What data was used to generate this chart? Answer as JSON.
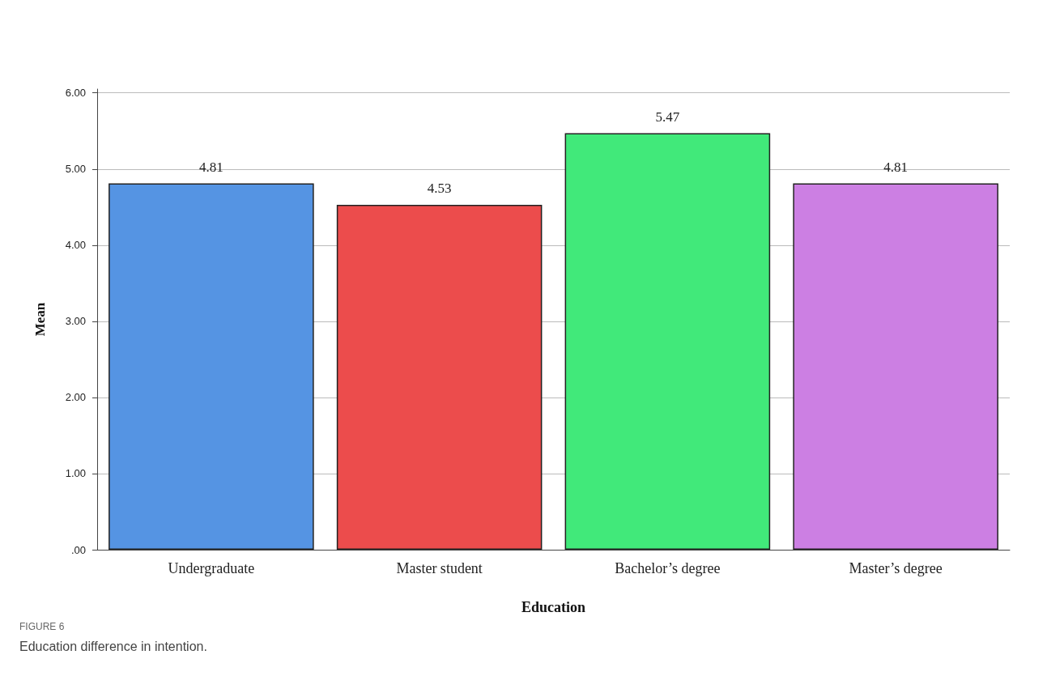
{
  "chart_data": {
    "type": "bar",
    "xlabel": "Education",
    "ylabel": "Mean",
    "categories": [
      "Undergraduate",
      "Master student",
      "Bachelor’s degree",
      "Master’s degree"
    ],
    "values": [
      4.81,
      4.53,
      5.47,
      4.81
    ],
    "colors": [
      "#5594e3",
      "#ec4c4c",
      "#41e97a",
      "#cc7fe3"
    ],
    "ylim": [
      0,
      6.05
    ],
    "yticks": [
      {
        "value": 0,
        "label": ".00"
      },
      {
        "value": 1,
        "label": "1.00"
      },
      {
        "value": 2,
        "label": "2.00"
      },
      {
        "value": 3,
        "label": "3.00"
      },
      {
        "value": 4,
        "label": "4.00"
      },
      {
        "value": 5,
        "label": "5.00"
      },
      {
        "value": 6,
        "label": "6.00"
      }
    ],
    "grid": "y",
    "data_labels": true,
    "annotations": [
      "FIGURE 6",
      "Education difference in intention."
    ]
  }
}
